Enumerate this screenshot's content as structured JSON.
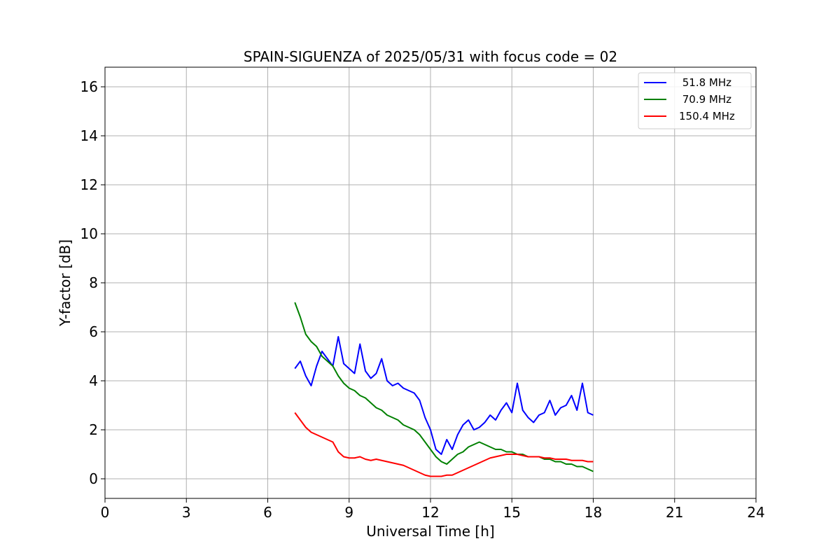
{
  "chart_data": {
    "type": "line",
    "title": "SPAIN-SIGUENZA of 2025/05/31 with focus code = 02",
    "xlabel": "Universal Time [h]",
    "ylabel": "Y-factor [dB]",
    "xlim": [
      0,
      24
    ],
    "ylim": [
      -0.8,
      16.8
    ],
    "xticks": [
      0,
      3,
      6,
      9,
      12,
      15,
      18,
      21,
      24
    ],
    "yticks": [
      0,
      2,
      4,
      6,
      8,
      10,
      12,
      14,
      16
    ],
    "grid": true,
    "legend_position": "top-right",
    "series": [
      {
        "name": " 51.8 MHz",
        "color": "#0000ff",
        "x": [
          7.0,
          7.2,
          7.4,
          7.6,
          7.8,
          8.0,
          8.2,
          8.4,
          8.6,
          8.8,
          9.0,
          9.2,
          9.4,
          9.6,
          9.8,
          10.0,
          10.2,
          10.4,
          10.6,
          10.8,
          11.0,
          11.2,
          11.4,
          11.6,
          11.8,
          12.0,
          12.2,
          12.4,
          12.6,
          12.8,
          13.0,
          13.2,
          13.4,
          13.6,
          13.8,
          14.0,
          14.2,
          14.4,
          14.6,
          14.8,
          15.0,
          15.2,
          15.4,
          15.6,
          15.8,
          16.0,
          16.2,
          16.4,
          16.6,
          16.8,
          17.0,
          17.2,
          17.4,
          17.6,
          17.8,
          18.0
        ],
        "y": [
          4.5,
          4.8,
          4.2,
          3.8,
          4.6,
          5.2,
          4.9,
          4.6,
          5.8,
          4.7,
          4.5,
          4.3,
          5.5,
          4.4,
          4.1,
          4.3,
          4.9,
          4.0,
          3.8,
          3.9,
          3.7,
          3.6,
          3.5,
          3.2,
          2.5,
          2.0,
          1.2,
          1.0,
          1.6,
          1.2,
          1.8,
          2.2,
          2.4,
          2.0,
          2.1,
          2.3,
          2.6,
          2.4,
          2.8,
          3.1,
          2.7,
          3.9,
          2.8,
          2.5,
          2.3,
          2.6,
          2.7,
          3.2,
          2.6,
          2.9,
          3.0,
          3.4,
          2.8,
          3.9,
          2.7,
          2.6
        ]
      },
      {
        "name": " 70.9 MHz",
        "color": "#008000",
        "x": [
          7.0,
          7.2,
          7.4,
          7.6,
          7.8,
          8.0,
          8.2,
          8.4,
          8.6,
          8.8,
          9.0,
          9.2,
          9.4,
          9.6,
          9.8,
          10.0,
          10.2,
          10.4,
          10.6,
          10.8,
          11.0,
          11.2,
          11.4,
          11.6,
          11.8,
          12.0,
          12.2,
          12.4,
          12.6,
          12.8,
          13.0,
          13.2,
          13.4,
          13.6,
          13.8,
          14.0,
          14.2,
          14.4,
          14.6,
          14.8,
          15.0,
          15.2,
          15.4,
          15.6,
          15.8,
          16.0,
          16.2,
          16.4,
          16.6,
          16.8,
          17.0,
          17.2,
          17.4,
          17.6,
          17.8,
          18.0
        ],
        "y": [
          7.2,
          6.6,
          5.9,
          5.6,
          5.4,
          5.0,
          4.8,
          4.6,
          4.2,
          3.9,
          3.7,
          3.6,
          3.4,
          3.3,
          3.1,
          2.9,
          2.8,
          2.6,
          2.5,
          2.4,
          2.2,
          2.1,
          2.0,
          1.8,
          1.5,
          1.2,
          0.9,
          0.7,
          0.6,
          0.8,
          1.0,
          1.1,
          1.3,
          1.4,
          1.5,
          1.4,
          1.3,
          1.2,
          1.2,
          1.1,
          1.1,
          1.0,
          1.0,
          0.9,
          0.9,
          0.9,
          0.8,
          0.8,
          0.7,
          0.7,
          0.6,
          0.6,
          0.5,
          0.5,
          0.4,
          0.3
        ]
      },
      {
        "name": "150.4 MHz",
        "color": "#ff0000",
        "x": [
          7.0,
          7.2,
          7.4,
          7.6,
          7.8,
          8.0,
          8.2,
          8.4,
          8.6,
          8.8,
          9.0,
          9.2,
          9.4,
          9.6,
          9.8,
          10.0,
          10.2,
          10.4,
          10.6,
          10.8,
          11.0,
          11.2,
          11.4,
          11.6,
          11.8,
          12.0,
          12.2,
          12.4,
          12.6,
          12.8,
          13.0,
          13.2,
          13.4,
          13.6,
          13.8,
          14.0,
          14.2,
          14.4,
          14.6,
          14.8,
          15.0,
          15.2,
          15.4,
          15.6,
          15.8,
          16.0,
          16.2,
          16.4,
          16.6,
          16.8,
          17.0,
          17.2,
          17.4,
          17.6,
          17.8,
          18.0
        ],
        "y": [
          2.7,
          2.4,
          2.1,
          1.9,
          1.8,
          1.7,
          1.6,
          1.5,
          1.1,
          0.9,
          0.85,
          0.85,
          0.9,
          0.8,
          0.75,
          0.8,
          0.75,
          0.7,
          0.65,
          0.6,
          0.55,
          0.45,
          0.35,
          0.25,
          0.15,
          0.1,
          0.1,
          0.1,
          0.15,
          0.15,
          0.25,
          0.35,
          0.45,
          0.55,
          0.65,
          0.75,
          0.85,
          0.9,
          0.95,
          1.0,
          1.0,
          1.0,
          0.95,
          0.9,
          0.9,
          0.9,
          0.85,
          0.85,
          0.8,
          0.8,
          0.8,
          0.75,
          0.75,
          0.75,
          0.7,
          0.7
        ]
      }
    ],
    "annotations": []
  }
}
